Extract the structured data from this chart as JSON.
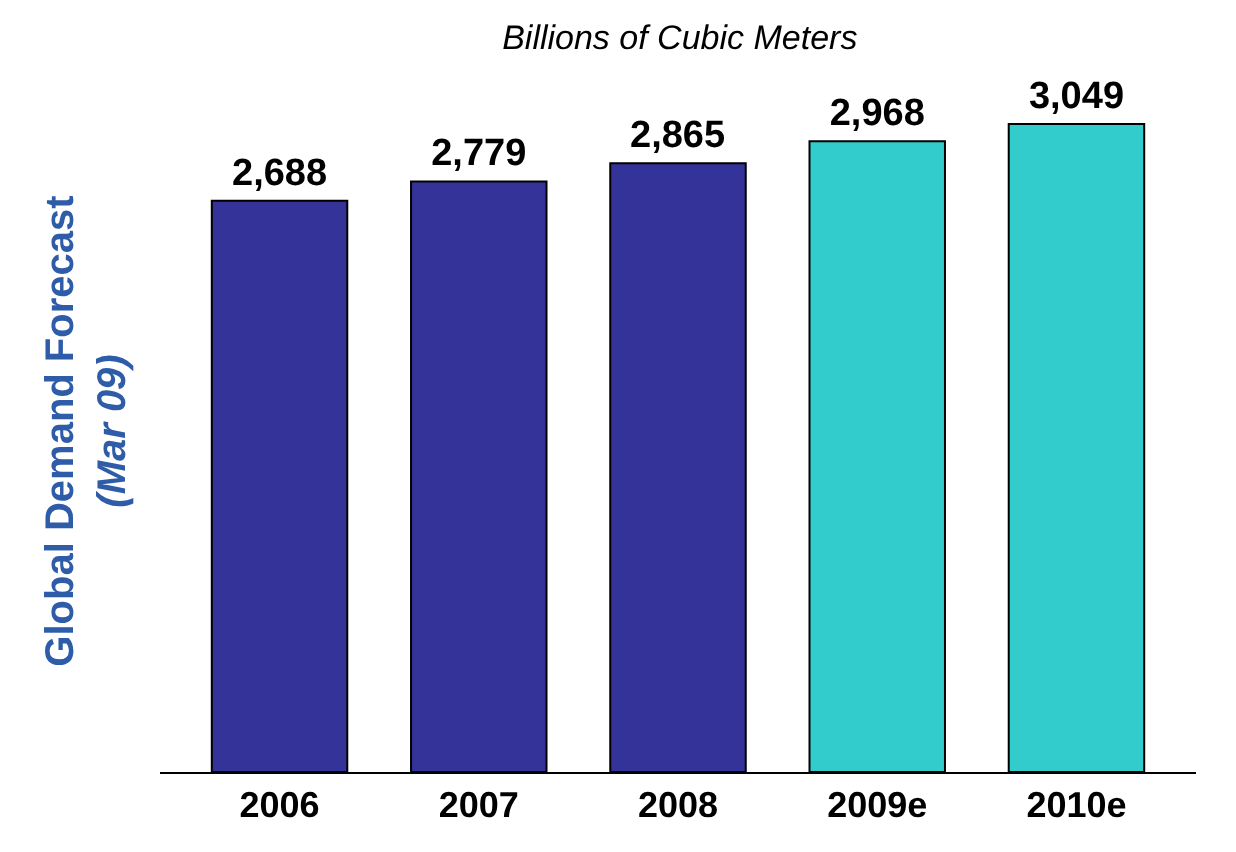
{
  "chart_data": {
    "type": "bar",
    "title": "Billions of Cubic Meters",
    "ylabel": "Global Demand Forecast\n(Mar 09)",
    "categories": [
      "2006",
      "2007",
      "2008",
      "2009e",
      "2010e"
    ],
    "values": [
      2688,
      2779,
      2865,
      2968,
      3049
    ],
    "value_labels": [
      "2,688",
      "2,779",
      "2,865",
      "2,968",
      "3,049"
    ],
    "colors": [
      "#333399",
      "#333399",
      "#333399",
      "#33cccc",
      "#33cccc"
    ],
    "tick_labels": "x"
  }
}
